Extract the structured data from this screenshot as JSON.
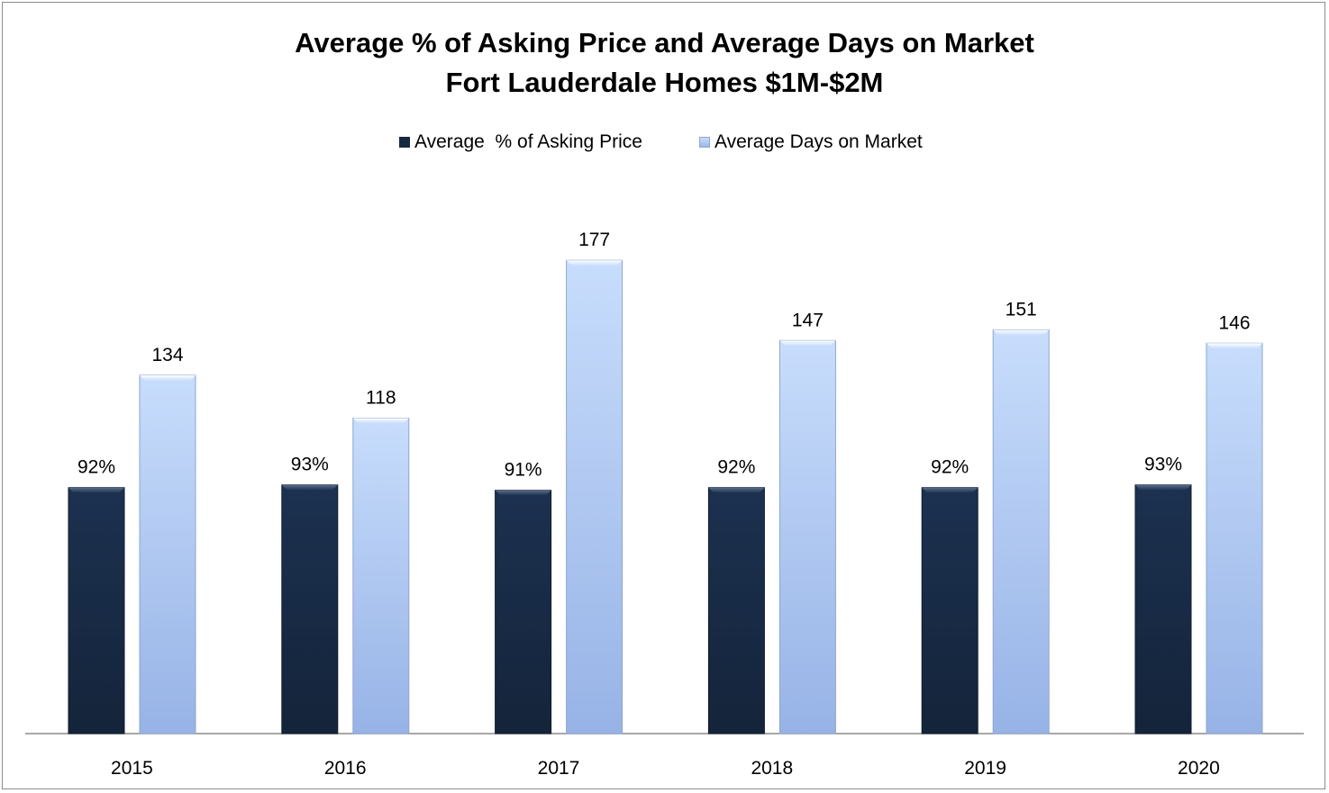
{
  "chart_data": {
    "type": "bar",
    "title": "Average % of Asking Price and Average Days on Market",
    "subtitle": "Fort Lauderdale Homes $1M-$2M",
    "categories": [
      "2015",
      "2016",
      "2017",
      "2018",
      "2019",
      "2020"
    ],
    "series": [
      {
        "name": "Average  % of Asking Price",
        "values": [
          92,
          93,
          91,
          92,
          92,
          93
        ],
        "labels": [
          "92%",
          "93%",
          "91%",
          "92%",
          "92%",
          "93%"
        ],
        "color": "#17293f"
      },
      {
        "name": "Average Days on Market",
        "values": [
          134,
          118,
          177,
          147,
          151,
          146
        ],
        "labels": [
          "134",
          "118",
          "177",
          "147",
          "151",
          "146"
        ],
        "color": "#a7c4f0"
      }
    ],
    "ylim": [
      0,
      204
    ],
    "grid": false,
    "legend": "top-center",
    "xlabel": "",
    "ylabel": ""
  }
}
